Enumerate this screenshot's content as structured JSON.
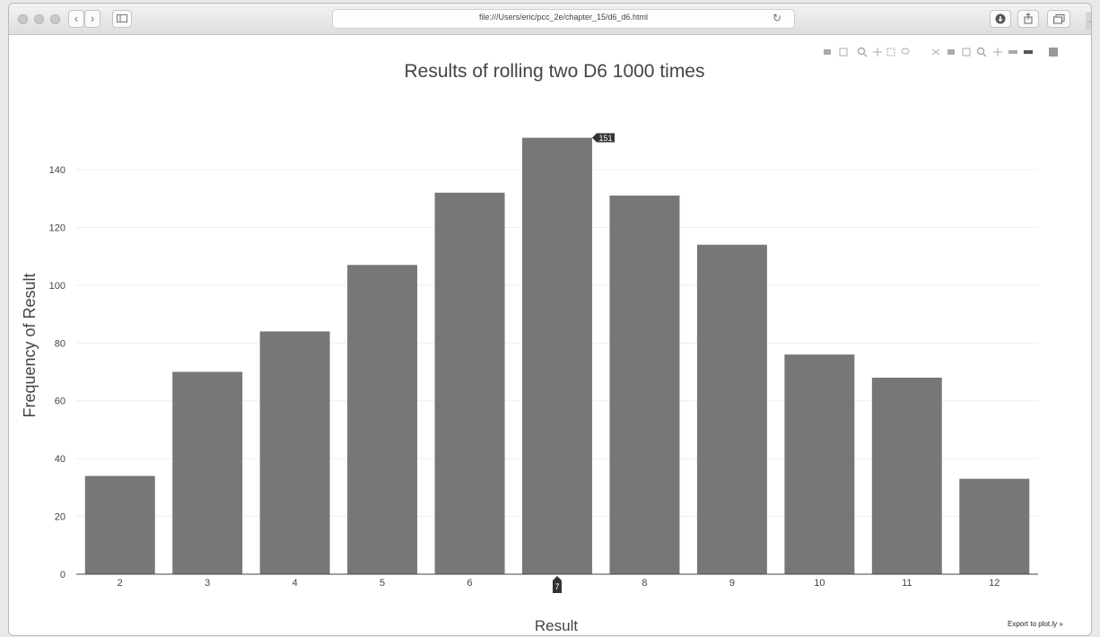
{
  "browser": {
    "url": "file:///Users/eric/pcc_2e/chapter_15/d6_d6.html",
    "back_glyph": "‹",
    "forward_glyph": "›",
    "reload_glyph": "↻",
    "newtab_glyph": "+"
  },
  "modebar": {
    "icons": [
      "camera-icon",
      "save-icon",
      "zoom-icon",
      "pan-icon",
      "box-select-icon",
      "lasso-icon",
      "zoom-in-icon",
      "zoom-out-icon",
      "autoscale-icon",
      "reset-axes-icon",
      "spike-lines-icon",
      "hover-closest-icon",
      "hover-compare-icon",
      "plotly-logo-icon"
    ]
  },
  "chart_data": {
    "type": "bar",
    "title": "Results of rolling two D6 1000 times",
    "xlabel": "Result",
    "ylabel": "Frequency of Result",
    "categories": [
      "2",
      "3",
      "4",
      "5",
      "6",
      "7",
      "8",
      "9",
      "10",
      "11",
      "12"
    ],
    "values": [
      34,
      70,
      84,
      107,
      132,
      151,
      131,
      114,
      76,
      68,
      33
    ],
    "ylim": [
      0,
      158
    ],
    "yticks": [
      0,
      20,
      40,
      60,
      80,
      100,
      120,
      140
    ],
    "grid": true,
    "bar_color": "#777777",
    "hover": {
      "category": "7",
      "value_label": "151",
      "category_label": "7"
    }
  },
  "footer": {
    "export_label": "Export to plot.ly »"
  }
}
